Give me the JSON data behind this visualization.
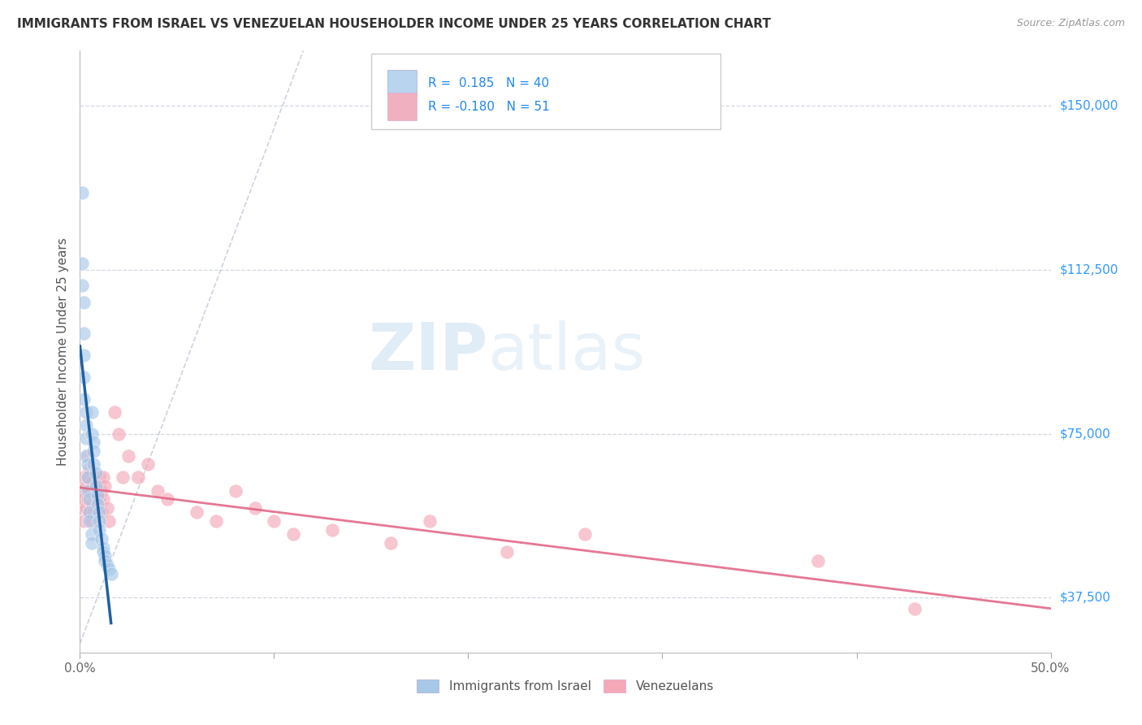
{
  "title": "IMMIGRANTS FROM ISRAEL VS VENEZUELAN HOUSEHOLDER INCOME UNDER 25 YEARS CORRELATION CHART",
  "source": "Source: ZipAtlas.com",
  "ylabel": "Householder Income Under 25 years",
  "xlim": [
    0.0,
    0.5
  ],
  "ylim": [
    25000,
    162500
  ],
  "yticks": [
    37500,
    75000,
    112500,
    150000
  ],
  "yticklabels": [
    "$37,500",
    "$75,000",
    "$112,500",
    "$150,000"
  ],
  "color_israel": "#a8c8e8",
  "color_venezuela": "#f4a8b8",
  "color_israel_line": "#2060a0",
  "color_venezuela_line": "#e06080",
  "color_diag": "#c0c8d8",
  "background_color": "#ffffff",
  "grid_color": "#d0d8e0",
  "israel_x": [
    0.001,
    0.001,
    0.001,
    0.002,
    0.002,
    0.002,
    0.002,
    0.002,
    0.003,
    0.003,
    0.003,
    0.003,
    0.004,
    0.004,
    0.004,
    0.005,
    0.005,
    0.005,
    0.006,
    0.006,
    0.006,
    0.006,
    0.007,
    0.007,
    0.007,
    0.008,
    0.008,
    0.009,
    0.009,
    0.01,
    0.01,
    0.01,
    0.011,
    0.012,
    0.012,
    0.013,
    0.013,
    0.014,
    0.015,
    0.016
  ],
  "israel_y": [
    130000,
    114000,
    109000,
    105000,
    98000,
    93000,
    88000,
    83000,
    80000,
    77000,
    74000,
    70000,
    68000,
    65000,
    62000,
    60000,
    57000,
    55000,
    52000,
    50000,
    80000,
    75000,
    73000,
    71000,
    68000,
    66000,
    63000,
    61000,
    59000,
    57000,
    55000,
    53000,
    51000,
    49000,
    48000,
    47000,
    46000,
    45000,
    44000,
    43000
  ],
  "venezuela_x": [
    0.001,
    0.001,
    0.002,
    0.002,
    0.002,
    0.003,
    0.003,
    0.004,
    0.004,
    0.004,
    0.005,
    0.005,
    0.005,
    0.006,
    0.006,
    0.006,
    0.007,
    0.007,
    0.008,
    0.008,
    0.009,
    0.01,
    0.01,
    0.011,
    0.011,
    0.012,
    0.012,
    0.013,
    0.014,
    0.015,
    0.018,
    0.02,
    0.022,
    0.025,
    0.03,
    0.035,
    0.04,
    0.045,
    0.06,
    0.07,
    0.08,
    0.09,
    0.1,
    0.11,
    0.13,
    0.16,
    0.18,
    0.22,
    0.26,
    0.38,
    0.43
  ],
  "venezuela_y": [
    62000,
    58000,
    65000,
    60000,
    55000,
    63000,
    58000,
    70000,
    65000,
    60000,
    67000,
    62000,
    57000,
    64000,
    59000,
    55000,
    61000,
    57000,
    63000,
    58000,
    60000,
    65000,
    60000,
    62000,
    57000,
    65000,
    60000,
    63000,
    58000,
    55000,
    80000,
    75000,
    65000,
    70000,
    65000,
    68000,
    62000,
    60000,
    57000,
    55000,
    62000,
    58000,
    55000,
    52000,
    53000,
    50000,
    55000,
    48000,
    52000,
    46000,
    35000
  ],
  "watermark_zip_color": "#c8ddf0",
  "watermark_atlas_color": "#c8ddf0"
}
